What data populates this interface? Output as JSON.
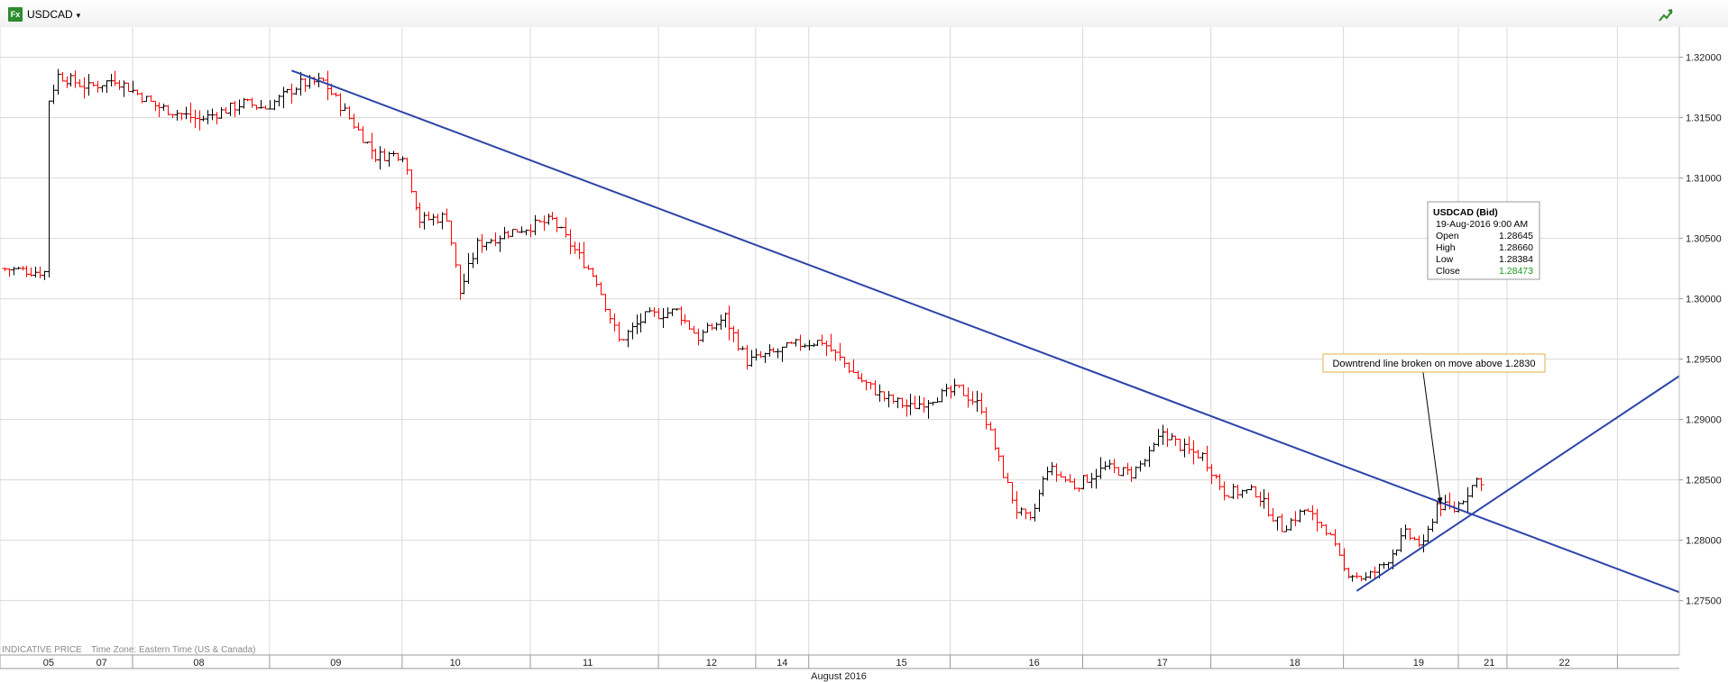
{
  "toolbar": {
    "badge": "Fx",
    "symbol": "USDCAD",
    "caret": "▾",
    "trend_icon": "trend-arrow-icon"
  },
  "footer": {
    "indicative": "INDICATIVE PRICE",
    "timezone": "Time Zone: Eastern Time (US & Canada)",
    "month": "August 2016"
  },
  "tooltip": {
    "title": "USDCAD (Bid)",
    "datetime": "19-Aug-2016 9:00 AM",
    "rows": [
      {
        "label": "Open",
        "value": "1.28645"
      },
      {
        "label": "High",
        "value": "1.28660"
      },
      {
        "label": "Low",
        "value": "1.28384"
      },
      {
        "label": "Close",
        "value": "1.28473"
      }
    ]
  },
  "annotation": {
    "text": "Downtrend line broken on move above 1.2830"
  },
  "colors": {
    "up": "#000000",
    "down": "#ff0000",
    "trendline": "#2c44a8",
    "grid": "#d9d9d9",
    "close_value": "#1a9a1a",
    "annotation_border": "#e0b040"
  },
  "chart_data": {
    "type": "ohlc",
    "instrument": "USDCAD",
    "interval": "hourly",
    "yaxis_ticks": [
      "1.32000",
      "1.31500",
      "1.31000",
      "1.30500",
      "1.30000",
      "1.29500",
      "1.29000",
      "1.28500",
      "1.28000",
      "1.27500"
    ],
    "ylim": [
      1.2705,
      1.3225
    ],
    "xaxis_labels": [
      {
        "label": "05",
        "x": 0.0
      },
      {
        "label": "07",
        "x": 1.2
      },
      {
        "label": "08",
        "x": 3.4
      },
      {
        "label": "09",
        "x": 6.5
      },
      {
        "label": "10",
        "x": 9.2
      },
      {
        "label": "11",
        "x": 12.2
      },
      {
        "label": "12",
        "x": 15.0
      },
      {
        "label": "14",
        "x": 16.6
      },
      {
        "label": "15",
        "x": 19.3
      },
      {
        "label": "16",
        "x": 22.3
      },
      {
        "label": "17",
        "x": 25.2
      },
      {
        "label": "18",
        "x": 28.2
      },
      {
        "label": "19",
        "x": 31.0
      },
      {
        "label": "21",
        "x": 32.6
      },
      {
        "label": "22",
        "x": 34.3
      }
    ],
    "xaxis_separators": [
      -1.1,
      1.9,
      5.0,
      8.0,
      10.9,
      13.8,
      16.0,
      17.2,
      20.4,
      23.4,
      26.3,
      29.3,
      31.9,
      33.0,
      35.5
    ],
    "xlim": [
      -1.1,
      36.9
    ],
    "anchors": [
      [
        -1.0,
        1.3025
      ],
      [
        0.0,
        1.3022
      ],
      [
        0.05,
        1.316
      ],
      [
        0.3,
        1.3185
      ],
      [
        1.0,
        1.3175
      ],
      [
        1.6,
        1.3182
      ],
      [
        2.5,
        1.316
      ],
      [
        3.5,
        1.3148
      ],
      [
        4.5,
        1.3162
      ],
      [
        5.0,
        1.3158
      ],
      [
        5.8,
        1.3178
      ],
      [
        6.3,
        1.318
      ],
      [
        6.8,
        1.3155
      ],
      [
        7.5,
        1.3118
      ],
      [
        8.1,
        1.312
      ],
      [
        8.5,
        1.3065
      ],
      [
        9.1,
        1.3068
      ],
      [
        9.4,
        1.3005
      ],
      [
        9.8,
        1.3045
      ],
      [
        10.5,
        1.3055
      ],
      [
        11.5,
        1.3065
      ],
      [
        12.0,
        1.304
      ],
      [
        12.5,
        1.3015
      ],
      [
        13.0,
        1.2965
      ],
      [
        13.6,
        1.2985
      ],
      [
        14.3,
        1.299
      ],
      [
        14.8,
        1.2968
      ],
      [
        15.4,
        1.2985
      ],
      [
        15.9,
        1.2948
      ],
      [
        16.5,
        1.2955
      ],
      [
        17.0,
        1.2962
      ],
      [
        17.6,
        1.2965
      ],
      [
        18.4,
        1.2935
      ],
      [
        19.0,
        1.2918
      ],
      [
        19.6,
        1.291
      ],
      [
        20.1,
        1.2918
      ],
      [
        20.7,
        1.2925
      ],
      [
        21.2,
        1.291
      ],
      [
        21.7,
        1.2855
      ],
      [
        22.0,
        1.2825
      ],
      [
        22.3,
        1.2815
      ],
      [
        22.7,
        1.286
      ],
      [
        23.3,
        1.2845
      ],
      [
        24.0,
        1.286
      ],
      [
        24.6,
        1.2855
      ],
      [
        25.0,
        1.287
      ],
      [
        25.3,
        1.289
      ],
      [
        25.8,
        1.2875
      ],
      [
        26.2,
        1.287
      ],
      [
        26.7,
        1.284
      ],
      [
        27.4,
        1.284
      ],
      [
        28.0,
        1.281
      ],
      [
        28.5,
        1.2825
      ],
      [
        29.0,
        1.281
      ],
      [
        29.4,
        1.2775
      ],
      [
        29.9,
        1.2768
      ],
      [
        30.3,
        1.278
      ],
      [
        30.8,
        1.2805
      ],
      [
        31.2,
        1.2795
      ],
      [
        31.5,
        1.283
      ],
      [
        31.9,
        1.2825
      ],
      [
        32.4,
        1.285
      ]
    ],
    "trendlines": [
      {
        "name": "downtrend",
        "points": [
          [
            5.5,
            1.3189
          ],
          [
            36.9,
            1.2757
          ]
        ]
      },
      {
        "name": "uptrend",
        "points": [
          [
            29.6,
            1.2758
          ],
          [
            36.9,
            1.2936
          ]
        ]
      }
    ],
    "annotation_arrow": {
      "from": [
        31.1,
        1.294
      ],
      "to": [
        31.5,
        1.283
      ]
    },
    "grid": true
  }
}
